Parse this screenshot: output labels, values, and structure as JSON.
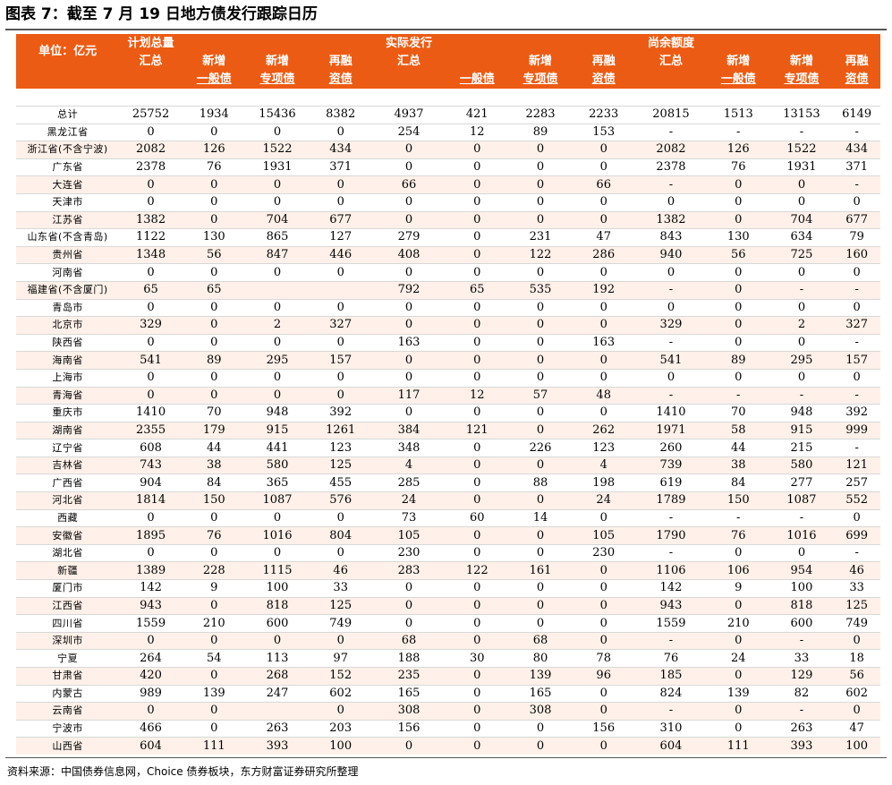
{
  "title": "图表 7：截至 7 月 19 日地方债发行跟踪日历",
  "source": "资料来源：中国债券信息网，Choice 债券板块，东方财富证券研究所整理",
  "colors": {
    "header_bg": "#EC5B13",
    "header_text": "#FFFFFF",
    "stripe": "#FFF1E9",
    "grid": "#D8D8D8"
  },
  "header": {
    "unit": "单位：亿元",
    "plan_total_l1": "计划总量",
    "plan_total_l2": "汇总",
    "actual_total_l1": "实际发行",
    "actual_total_l2": "汇总",
    "remain_total_l1": "尚余额度",
    "remain_total_l2": "汇总",
    "new_l1": "新增",
    "refi_l1": "再融",
    "general": "一般债",
    "special": "专项债",
    "refi_l2": "资债"
  },
  "table": {
    "rows": [
      [
        "总计",
        "25752",
        "1934",
        "15436",
        "8382",
        "4937",
        "421",
        "2283",
        "2233",
        "20815",
        "1513",
        "13153",
        "6149"
      ],
      [
        "黑龙江省",
        "0",
        "0",
        "0",
        "0",
        "254",
        "12",
        "89",
        "153",
        "-",
        "-",
        "-",
        "-"
      ],
      [
        "浙江省(不含宁波)",
        "2082",
        "126",
        "1522",
        "434",
        "0",
        "0",
        "0",
        "0",
        "2082",
        "126",
        "1522",
        "434"
      ],
      [
        "广东省",
        "2378",
        "76",
        "1931",
        "371",
        "0",
        "0",
        "0",
        "0",
        "2378",
        "76",
        "1931",
        "371"
      ],
      [
        "大连省",
        "0",
        "0",
        "0",
        "0",
        "66",
        "0",
        "0",
        "66",
        "-",
        "0",
        "0",
        "-"
      ],
      [
        "天津市",
        "0",
        "0",
        "0",
        "0",
        "0",
        "0",
        "0",
        "0",
        "0",
        "0",
        "0",
        "0"
      ],
      [
        "江苏省",
        "1382",
        "0",
        "704",
        "677",
        "0",
        "0",
        "0",
        "0",
        "1382",
        "0",
        "704",
        "677"
      ],
      [
        "山东省(不含青岛)",
        "1122",
        "130",
        "865",
        "127",
        "279",
        "0",
        "231",
        "47",
        "843",
        "130",
        "634",
        "79"
      ],
      [
        "贵州省",
        "1348",
        "56",
        "847",
        "446",
        "408",
        "0",
        "122",
        "286",
        "940",
        "56",
        "725",
        "160"
      ],
      [
        "河南省",
        "0",
        "0",
        "0",
        "0",
        "0",
        "0",
        "0",
        "0",
        "0",
        "0",
        "0",
        "0"
      ],
      [
        "福建省(不含厦门)",
        "65",
        "65",
        "",
        "",
        "792",
        "65",
        "535",
        "192",
        "-",
        "0",
        "-",
        "-"
      ],
      [
        "青岛市",
        "0",
        "0",
        "0",
        "0",
        "0",
        "0",
        "0",
        "0",
        "0",
        "0",
        "0",
        "0"
      ],
      [
        "北京市",
        "329",
        "0",
        "2",
        "327",
        "0",
        "0",
        "0",
        "0",
        "329",
        "0",
        "2",
        "327"
      ],
      [
        "陕西省",
        "0",
        "0",
        "0",
        "0",
        "163",
        "0",
        "0",
        "163",
        "-",
        "0",
        "0",
        "-"
      ],
      [
        "海南省",
        "541",
        "89",
        "295",
        "157",
        "0",
        "0",
        "0",
        "0",
        "541",
        "89",
        "295",
        "157"
      ],
      [
        "上海市",
        "0",
        "0",
        "0",
        "0",
        "0",
        "0",
        "0",
        "0",
        "0",
        "0",
        "0",
        "0"
      ],
      [
        "青海省",
        "0",
        "0",
        "0",
        "0",
        "117",
        "12",
        "57",
        "48",
        "-",
        "-",
        "-",
        "-"
      ],
      [
        "重庆市",
        "1410",
        "70",
        "948",
        "392",
        "0",
        "0",
        "0",
        "0",
        "1410",
        "70",
        "948",
        "392"
      ],
      [
        "湖南省",
        "2355",
        "179",
        "915",
        "1261",
        "384",
        "121",
        "0",
        "262",
        "1971",
        "58",
        "915",
        "999"
      ],
      [
        "辽宁省",
        "608",
        "44",
        "441",
        "123",
        "348",
        "0",
        "226",
        "123",
        "260",
        "44",
        "215",
        "-"
      ],
      [
        "吉林省",
        "743",
        "38",
        "580",
        "125",
        "4",
        "0",
        "0",
        "4",
        "739",
        "38",
        "580",
        "121"
      ],
      [
        "广西省",
        "904",
        "84",
        "365",
        "455",
        "285",
        "0",
        "88",
        "198",
        "619",
        "84",
        "277",
        "257"
      ],
      [
        "河北省",
        "1814",
        "150",
        "1087",
        "576",
        "24",
        "0",
        "0",
        "24",
        "1789",
        "150",
        "1087",
        "552"
      ],
      [
        "西藏",
        "0",
        "0",
        "0",
        "0",
        "73",
        "60",
        "14",
        "0",
        "-",
        "-",
        "-",
        "0"
      ],
      [
        "安徽省",
        "1895",
        "76",
        "1016",
        "804",
        "105",
        "0",
        "0",
        "105",
        "1790",
        "76",
        "1016",
        "699"
      ],
      [
        "湖北省",
        "0",
        "0",
        "0",
        "0",
        "230",
        "0",
        "0",
        "230",
        "-",
        "0",
        "0",
        "-"
      ],
      [
        "新疆",
        "1389",
        "228",
        "1115",
        "46",
        "283",
        "122",
        "161",
        "0",
        "1106",
        "106",
        "954",
        "46"
      ],
      [
        "厦门市",
        "142",
        "9",
        "100",
        "33",
        "0",
        "0",
        "0",
        "0",
        "142",
        "9",
        "100",
        "33"
      ],
      [
        "江西省",
        "943",
        "0",
        "818",
        "125",
        "0",
        "0",
        "0",
        "0",
        "943",
        "0",
        "818",
        "125"
      ],
      [
        "四川省",
        "1559",
        "210",
        "600",
        "749",
        "0",
        "0",
        "0",
        "0",
        "1559",
        "210",
        "600",
        "749"
      ],
      [
        "深圳市",
        "0",
        "0",
        "0",
        "0",
        "68",
        "0",
        "68",
        "0",
        "-",
        "0",
        "-",
        "0"
      ],
      [
        "宁夏",
        "264",
        "54",
        "113",
        "97",
        "188",
        "30",
        "80",
        "78",
        "76",
        "24",
        "33",
        "18"
      ],
      [
        "甘肃省",
        "420",
        "0",
        "268",
        "152",
        "235",
        "0",
        "139",
        "96",
        "185",
        "0",
        "129",
        "56"
      ],
      [
        "内蒙古",
        "989",
        "139",
        "247",
        "602",
        "165",
        "0",
        "165",
        "0",
        "824",
        "139",
        "82",
        "602"
      ],
      [
        "云南省",
        "0",
        "0",
        "",
        "0",
        "308",
        "0",
        "308",
        "0",
        "-",
        "0",
        "-",
        "0"
      ],
      [
        "宁波市",
        "466",
        "0",
        "263",
        "203",
        "156",
        "0",
        "0",
        "156",
        "310",
        "0",
        "263",
        "47"
      ],
      [
        "山西省",
        "604",
        "111",
        "393",
        "100",
        "0",
        "0",
        "0",
        "0",
        "604",
        "111",
        "393",
        "100"
      ]
    ]
  }
}
